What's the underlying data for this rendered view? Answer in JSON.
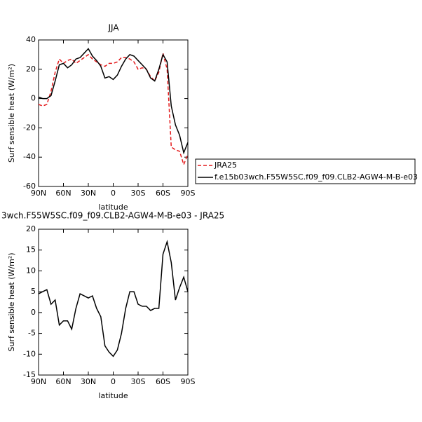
{
  "chart_data": [
    {
      "type": "line",
      "title": "JJA",
      "xlabel": "latitude",
      "ylabel": "Surf sensible heat (W/m²)",
      "x": [
        90,
        85,
        80,
        75,
        70,
        65,
        60,
        55,
        50,
        45,
        40,
        35,
        30,
        25,
        20,
        15,
        10,
        5,
        0,
        -5,
        -10,
        -15,
        -20,
        -25,
        -30,
        -35,
        -40,
        -45,
        -50,
        -55,
        -60,
        -65,
        -70,
        -75,
        -80,
        -85,
        -90
      ],
      "series": [
        {
          "name": "JRA25",
          "color": "#e41a1c",
          "line_style": "dashed",
          "values": [
            -4,
            -5,
            -4,
            5,
            18,
            27,
            24,
            26,
            27,
            24,
            26,
            28,
            30,
            27,
            25,
            23,
            22,
            24,
            24,
            25,
            28,
            28,
            27,
            25,
            20,
            21,
            20,
            15,
            12,
            18,
            31,
            20,
            -33,
            -35,
            -36,
            -45,
            -38
          ]
        },
        {
          "name": "f.e15b03wch.F55W5SC.f09_f09.CLB2-AGW4-M-B-e03",
          "color": "#000000",
          "line_style": "solid",
          "values": [
            1,
            0,
            0,
            2,
            12,
            23,
            24,
            21,
            23,
            27,
            28,
            31,
            34,
            29,
            26,
            22,
            14,
            15,
            13,
            16,
            22,
            27,
            30,
            29,
            26,
            23,
            20,
            14,
            12,
            20,
            30,
            25,
            -5,
            -18,
            -25,
            -37,
            -30
          ]
        }
      ],
      "xlim": [
        90,
        -90
      ],
      "xticks": [
        {
          "value": 90,
          "label": "90N"
        },
        {
          "value": 60,
          "label": "60N"
        },
        {
          "value": 30,
          "label": "30N"
        },
        0,
        {
          "value": -30,
          "label": "30S"
        },
        {
          "value": -60,
          "label": "60S"
        },
        {
          "value": -90,
          "label": "90S"
        }
      ],
      "ylim": [
        -60,
        40
      ],
      "yticks": [
        -60,
        -40,
        -20,
        0,
        20,
        40
      ],
      "legend": "right"
    },
    {
      "type": "line",
      "title": "3wch.F55W5SC.f09_f09.CLB2-AGW4-M-B-e03 - JRA25",
      "xlabel": "latitude",
      "ylabel": "Surf sensible heat (W/m²)",
      "x": [
        90,
        85,
        80,
        75,
        70,
        65,
        60,
        55,
        50,
        45,
        40,
        35,
        30,
        25,
        20,
        15,
        10,
        5,
        0,
        -5,
        -10,
        -15,
        -20,
        -25,
        -30,
        -35,
        -40,
        -45,
        -50,
        -55,
        -60,
        -65,
        -70,
        -75,
        -80,
        -85,
        -90
      ],
      "color": "#000000",
      "values": [
        4.5,
        5,
        5.5,
        2,
        3,
        -3,
        -2,
        -2,
        -4,
        1,
        4.5,
        4,
        3.5,
        4,
        1,
        -1,
        -8,
        -9.5,
        -10.5,
        -9,
        -5,
        1,
        5,
        5,
        2,
        1.5,
        1.5,
        0.5,
        1,
        1,
        14,
        17,
        12,
        3,
        6,
        8.5,
        5
      ],
      "xlim": [
        90,
        -90
      ],
      "xticks": [
        {
          "value": 90,
          "label": "90N"
        },
        {
          "value": 60,
          "label": "60N"
        },
        {
          "value": 30,
          "label": "30N"
        },
        0,
        {
          "value": -30,
          "label": "30S"
        },
        {
          "value": -60,
          "label": "60S"
        },
        {
          "value": -90,
          "label": "90S"
        }
      ],
      "ylim": [
        -15,
        20
      ],
      "yticks": [
        -15,
        -10,
        -5,
        0,
        5,
        10,
        15,
        20
      ]
    }
  ]
}
